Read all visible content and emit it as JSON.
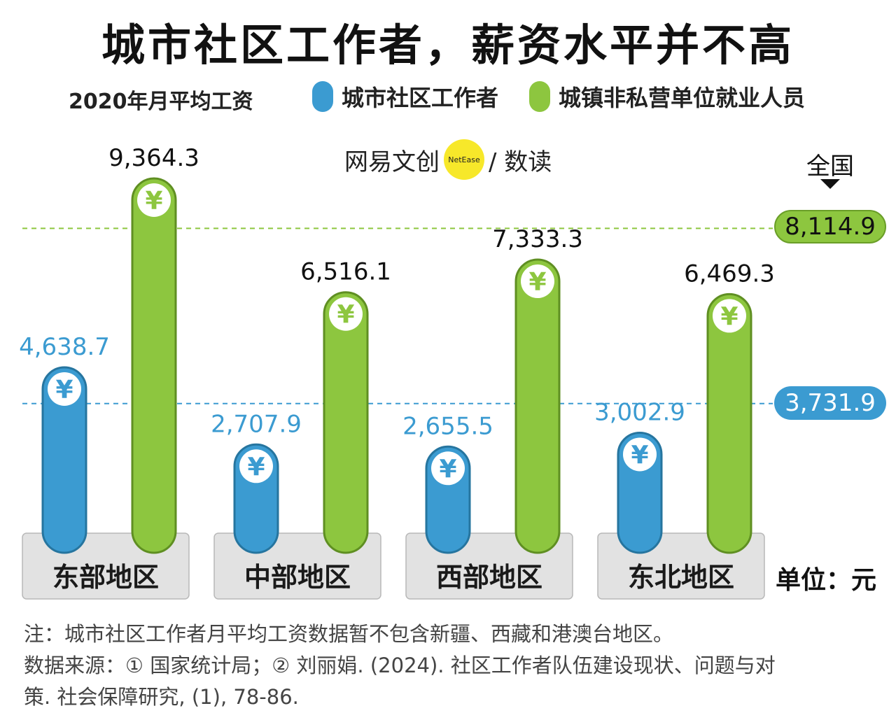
{
  "title": "城市社区工作者，薪资水平并不高",
  "subtitle": "2020年月平均工资",
  "legend": [
    {
      "label": "城市社区工作者",
      "color": "#3b9bd1"
    },
    {
      "label": "城镇非私营单位就业人员",
      "color": "#8dc63f"
    }
  ],
  "brand": {
    "name": "网易文创",
    "dot_text": "NetEase",
    "sub": "/ 数读"
  },
  "national": {
    "label": "全国",
    "green_label": "8,114.9",
    "blue_label": "3,731.9"
  },
  "unit": "单位：元",
  "notes": [
    "注：城市社区工作者月平均工资数据暂不包含新疆、西藏和港澳台地区。",
    "数据来源：① 国家统计局；② 刘丽娟. (2024). 社区工作者队伍建设现状、问题与对",
    "策. 社会保障研究, (1), 78-86."
  ],
  "chart_data": {
    "type": "bar",
    "categories": [
      "东部地区",
      "中部地区",
      "西部地区",
      "东北地区"
    ],
    "series": [
      {
        "name": "城市社区工作者",
        "color": "#3b9bd1",
        "values": [
          4638.7,
          2707.9,
          2655.5,
          3002.9
        ],
        "labels": [
          "4,638.7",
          "2,707.9",
          "2,655.5",
          "3,002.9"
        ]
      },
      {
        "name": "城镇非私营单位就业人员",
        "color": "#8dc63f",
        "values": [
          9364.3,
          6516.1,
          7333.3,
          6469.3
        ],
        "labels": [
          "9,364.3",
          "6,516.1",
          "7,333.3",
          "6,469.3"
        ]
      }
    ],
    "reference_lines": [
      {
        "series": "城镇非私营单位就业人员",
        "value": 8114.9,
        "label": "8,114.9",
        "color": "#8dc63f"
      },
      {
        "series": "城市社区工作者",
        "value": 3731.9,
        "label": "3,731.9",
        "color": "#3b9bd1"
      }
    ],
    "bar_icon": "yuan-icon",
    "icon_text": "¥",
    "ylim": [
      0,
      10000
    ]
  }
}
